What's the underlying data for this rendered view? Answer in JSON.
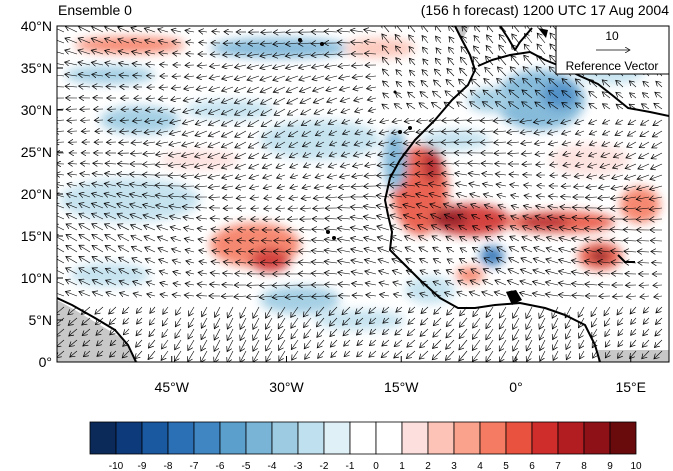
{
  "title_left": "Ensemble 0",
  "title_right": "(156 h forecast) 1200 UTC 17 Aug 2004",
  "reference_vector": {
    "value": "10",
    "label": "Reference Vector"
  },
  "y_axis": {
    "ticks": [
      {
        "value": 40,
        "label": "40°N"
      },
      {
        "value": 35,
        "label": "35°N"
      },
      {
        "value": 30,
        "label": "30°N"
      },
      {
        "value": 25,
        "label": "25°N"
      },
      {
        "value": 20,
        "label": "20°N"
      },
      {
        "value": 15,
        "label": "15°N"
      },
      {
        "value": 10,
        "label": "10°N"
      },
      {
        "value": 5,
        "label": "5°N"
      },
      {
        "value": 0,
        "label": "0°"
      }
    ]
  },
  "x_axis": {
    "ticks": [
      {
        "value": -45,
        "label": "45°W"
      },
      {
        "value": -30,
        "label": "30°W"
      },
      {
        "value": -15,
        "label": "15°W"
      },
      {
        "value": 0,
        "label": "0°"
      },
      {
        "value": 15,
        "label": "15°E"
      }
    ]
  },
  "colorbar": {
    "labels": [
      "-10",
      "-9",
      "-8",
      "-7",
      "-6",
      "-5",
      "-4",
      "-3",
      "-2",
      "-1",
      "0",
      "1",
      "2",
      "3",
      "4",
      "5",
      "6",
      "7",
      "8",
      "9",
      "10"
    ],
    "colors": [
      "#0b2a5a",
      "#0d3a7a",
      "#1a58a0",
      "#2b6fb4",
      "#3f86c3",
      "#5b9fcd",
      "#79b4d7",
      "#9ccbe2",
      "#bfe0ee",
      "#dff0f7",
      "#ffffff",
      "#ffffff",
      "#fde0dd",
      "#fcc3b6",
      "#fba28c",
      "#f57c62",
      "#e8523f",
      "#cf2d2b",
      "#b21d22",
      "#8e1117",
      "#690a0d"
    ]
  },
  "colors": {
    "land_mask": "#c8c8c8",
    "coastline": "#000000"
  }
}
